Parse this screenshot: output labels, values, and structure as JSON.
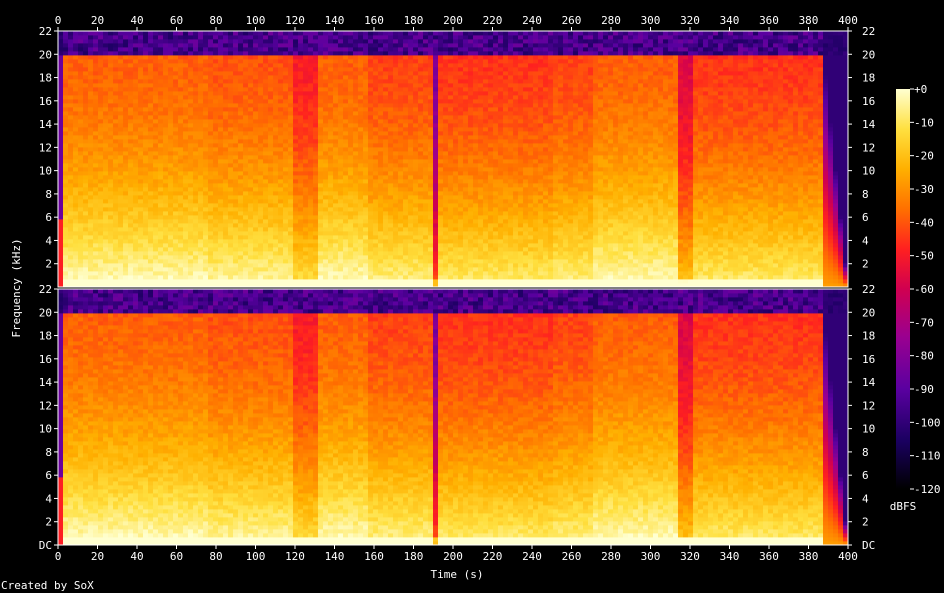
{
  "chart_data": {
    "type": "heatmap",
    "title": "",
    "xlabel": "Time (s)",
    "ylabel": "Frequency (kHz)",
    "x_range": [
      0,
      400
    ],
    "x_ticks": [
      "0",
      "20",
      "40",
      "60",
      "80",
      "100",
      "120",
      "140",
      "160",
      "180",
      "200",
      "220",
      "240",
      "260",
      "280",
      "300",
      "320",
      "340",
      "360",
      "380",
      "400"
    ],
    "y_range_khz": [
      0,
      22
    ],
    "channels": [
      {
        "name": "",
        "y_ticks": [
          "2",
          "4",
          "6",
          "8",
          "10",
          "12",
          "14",
          "16",
          "18",
          "20",
          "22"
        ]
      },
      {
        "name": "",
        "y_ticks": [
          "DC",
          "2",
          "4",
          "6",
          "8",
          "10",
          "12",
          "14",
          "16",
          "18",
          "20",
          "22"
        ]
      }
    ],
    "colorbar": {
      "label": "dBFS",
      "range": [
        -120,
        0
      ],
      "ticks": [
        "+0",
        "-10",
        "-20",
        "-30",
        "-40",
        "-50",
        "-60",
        "-70",
        "-80",
        "-90",
        "-100",
        "-110",
        "-120"
      ],
      "colors": [
        "#000000",
        "#1a0060",
        "#5a00a0",
        "#9a0090",
        "#d00050",
        "#ff2020",
        "#ff7000",
        "#ffb000",
        "#ffe040",
        "#ffffd0"
      ]
    },
    "content_lowpass_khz": 20,
    "segments_time_s": [
      {
        "start": 0,
        "end": 3,
        "level": 0.2
      },
      {
        "start": 3,
        "end": 75,
        "level": 0.72
      },
      {
        "start": 75,
        "end": 118,
        "level": 0.7
      },
      {
        "start": 118,
        "end": 132,
        "level": 0.62
      },
      {
        "start": 132,
        "end": 158,
        "level": 0.72
      },
      {
        "start": 158,
        "end": 190,
        "level": 0.68
      },
      {
        "start": 190,
        "end": 192,
        "level": 0.35
      },
      {
        "start": 192,
        "end": 250,
        "level": 0.66
      },
      {
        "start": 250,
        "end": 272,
        "level": 0.68
      },
      {
        "start": 272,
        "end": 313,
        "level": 0.72
      },
      {
        "start": 313,
        "end": 322,
        "level": 0.55
      },
      {
        "start": 322,
        "end": 388,
        "level": 0.66
      },
      {
        "start": 388,
        "end": 400,
        "level": 0.15
      }
    ]
  },
  "footer": {
    "credit": "Created by SoX"
  }
}
